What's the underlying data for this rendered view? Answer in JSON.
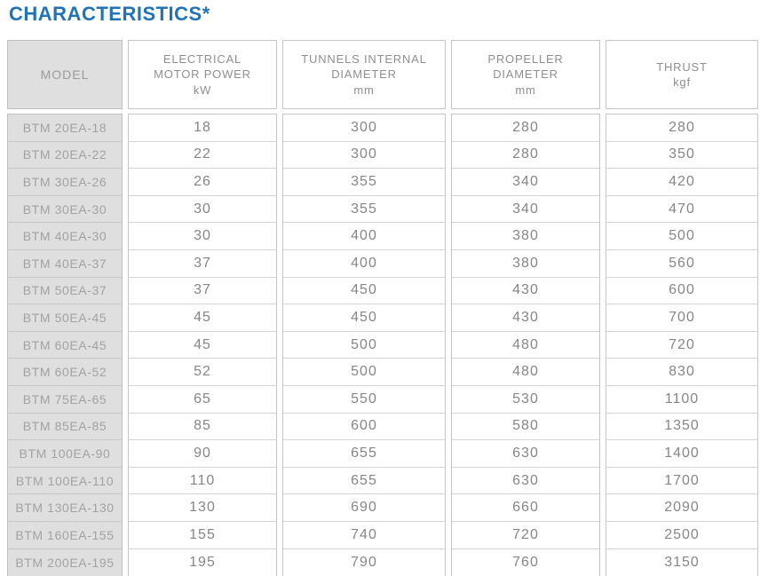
{
  "page": {
    "title": "CHARACTERISTICS*"
  },
  "colors": {
    "title_blue": "#2173b8",
    "header_gray_bg": "#dfdfdf",
    "border_gray": "#c5c5c5",
    "text_gray": "#868686"
  },
  "table": {
    "columns": [
      {
        "key": "model",
        "lines": [
          "MODEL"
        ],
        "unit": ""
      },
      {
        "key": "power",
        "lines": [
          "ELECTRICAL",
          "MOTOR POWER"
        ],
        "unit": "kW"
      },
      {
        "key": "tunnel",
        "lines": [
          "TUNNELS INTERNAL",
          "DIAMETER"
        ],
        "unit": "mm"
      },
      {
        "key": "prop",
        "lines": [
          "PROPELLER",
          "DIAMETER"
        ],
        "unit": "mm"
      },
      {
        "key": "thrust",
        "lines": [
          "THRUST"
        ],
        "unit": "kgf"
      }
    ],
    "rows": [
      {
        "model": "BTM 20EA-18",
        "power": "18",
        "tunnel": "300",
        "prop": "280",
        "thrust": "280"
      },
      {
        "model": "BTM 20EA-22",
        "power": "22",
        "tunnel": "300",
        "prop": "280",
        "thrust": "350"
      },
      {
        "model": "BTM 30EA-26",
        "power": "26",
        "tunnel": "355",
        "prop": "340",
        "thrust": "420"
      },
      {
        "model": "BTM 30EA-30",
        "power": "30",
        "tunnel": "355",
        "prop": "340",
        "thrust": "470"
      },
      {
        "model": "BTM 40EA-30",
        "power": "30",
        "tunnel": "400",
        "prop": "380",
        "thrust": "500"
      },
      {
        "model": "BTM 40EA-37",
        "power": "37",
        "tunnel": "400",
        "prop": "380",
        "thrust": "560"
      },
      {
        "model": "BTM 50EA-37",
        "power": "37",
        "tunnel": "450",
        "prop": "430",
        "thrust": "600"
      },
      {
        "model": "BTM 50EA-45",
        "power": "45",
        "tunnel": "450",
        "prop": "430",
        "thrust": "700"
      },
      {
        "model": "BTM 60EA-45",
        "power": "45",
        "tunnel": "500",
        "prop": "480",
        "thrust": "720"
      },
      {
        "model": "BTM 60EA-52",
        "power": "52",
        "tunnel": "500",
        "prop": "480",
        "thrust": "830"
      },
      {
        "model": "BTM 75EA-65",
        "power": "65",
        "tunnel": "550",
        "prop": "530",
        "thrust": "1100"
      },
      {
        "model": "BTM 85EA-85",
        "power": "85",
        "tunnel": "600",
        "prop": "580",
        "thrust": "1350"
      },
      {
        "model": "BTM 100EA-90",
        "power": "90",
        "tunnel": "655",
        "prop": "630",
        "thrust": "1400"
      },
      {
        "model": "BTM 100EA-110",
        "power": "110",
        "tunnel": "655",
        "prop": "630",
        "thrust": "1700"
      },
      {
        "model": "BTM 130EA-130",
        "power": "130",
        "tunnel": "690",
        "prop": "660",
        "thrust": "2090"
      },
      {
        "model": "BTM 160EA-155",
        "power": "155",
        "tunnel": "740",
        "prop": "720",
        "thrust": "2500"
      },
      {
        "model": "BTM 200EA-195",
        "power": "195",
        "tunnel": "790",
        "prop": "760",
        "thrust": "3150"
      }
    ]
  }
}
